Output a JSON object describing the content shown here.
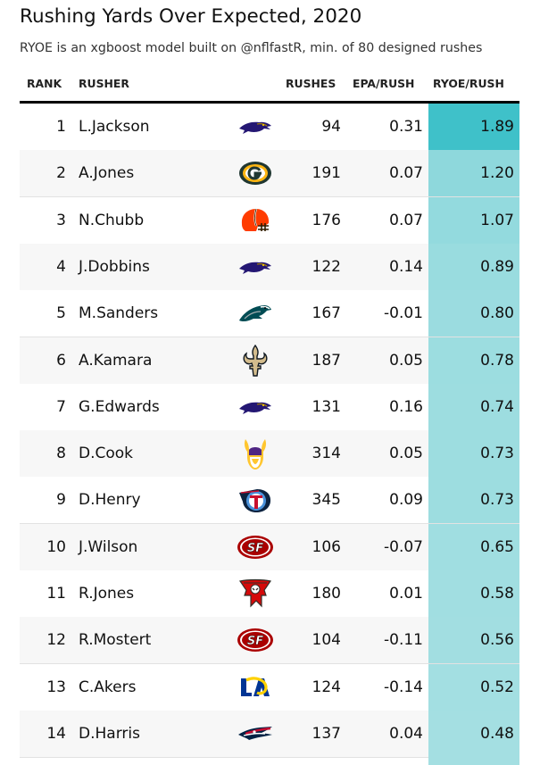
{
  "title": "Rushing Yards Over Expected, 2020",
  "subtitle": "RYOE is an xgboost model built on @nflfastR, min. of 80 designed rushes",
  "headers": {
    "rank": "RANK",
    "rusher": "RUSHER",
    "rushes": "RUSHES",
    "epa": "EPA/RUSH",
    "ryoe": "RYOE/RUSH"
  },
  "colors": {
    "ryoe_high": "#3fc1c9",
    "ryoe_low": "#a4dfe2",
    "row_alt": "#f7f7f7",
    "rule": "#000000"
  },
  "chart_data": {
    "type": "table",
    "columns": [
      "RANK",
      "RUSHER",
      "RUSHES",
      "EPA/RUSH",
      "RYOE/RUSH"
    ],
    "rows": [
      {
        "rank": "1",
        "rusher": "L.Jackson",
        "team_icon": "ravens-logo-icon",
        "rushes": "94",
        "epa": "0.31",
        "ryoe": "1.89"
      },
      {
        "rank": "2",
        "rusher": "A.Jones",
        "team_icon": "packers-logo-icon",
        "rushes": "191",
        "epa": "0.07",
        "ryoe": "1.20"
      },
      {
        "rank": "3",
        "rusher": "N.Chubb",
        "team_icon": "browns-logo-icon",
        "rushes": "176",
        "epa": "0.07",
        "ryoe": "1.07"
      },
      {
        "rank": "4",
        "rusher": "J.Dobbins",
        "team_icon": "ravens-logo-icon",
        "rushes": "122",
        "epa": "0.14",
        "ryoe": "0.89"
      },
      {
        "rank": "5",
        "rusher": "M.Sanders",
        "team_icon": "eagles-logo-icon",
        "rushes": "167",
        "epa": "-0.01",
        "ryoe": "0.80"
      },
      {
        "rank": "6",
        "rusher": "A.Kamara",
        "team_icon": "saints-logo-icon",
        "rushes": "187",
        "epa": "0.05",
        "ryoe": "0.78"
      },
      {
        "rank": "7",
        "rusher": "G.Edwards",
        "team_icon": "ravens-logo-icon",
        "rushes": "131",
        "epa": "0.16",
        "ryoe": "0.74"
      },
      {
        "rank": "8",
        "rusher": "D.Cook",
        "team_icon": "vikings-logo-icon",
        "rushes": "314",
        "epa": "0.05",
        "ryoe": "0.73"
      },
      {
        "rank": "9",
        "rusher": "D.Henry",
        "team_icon": "titans-logo-icon",
        "rushes": "345",
        "epa": "0.09",
        "ryoe": "0.73"
      },
      {
        "rank": "10",
        "rusher": "J.Wilson",
        "team_icon": "49ers-logo-icon",
        "rushes": "106",
        "epa": "-0.07",
        "ryoe": "0.65"
      },
      {
        "rank": "11",
        "rusher": "R.Jones",
        "team_icon": "buccaneers-logo-icon",
        "rushes": "180",
        "epa": "0.01",
        "ryoe": "0.58"
      },
      {
        "rank": "12",
        "rusher": "R.Mostert",
        "team_icon": "49ers-logo-icon",
        "rushes": "104",
        "epa": "-0.11",
        "ryoe": "0.56"
      },
      {
        "rank": "13",
        "rusher": "C.Akers",
        "team_icon": "rams-logo-icon",
        "rushes": "124",
        "epa": "-0.14",
        "ryoe": "0.52"
      },
      {
        "rank": "14",
        "rusher": "D.Harris",
        "team_icon": "patriots-logo-icon",
        "rushes": "137",
        "epa": "0.04",
        "ryoe": "0.48"
      }
    ]
  }
}
